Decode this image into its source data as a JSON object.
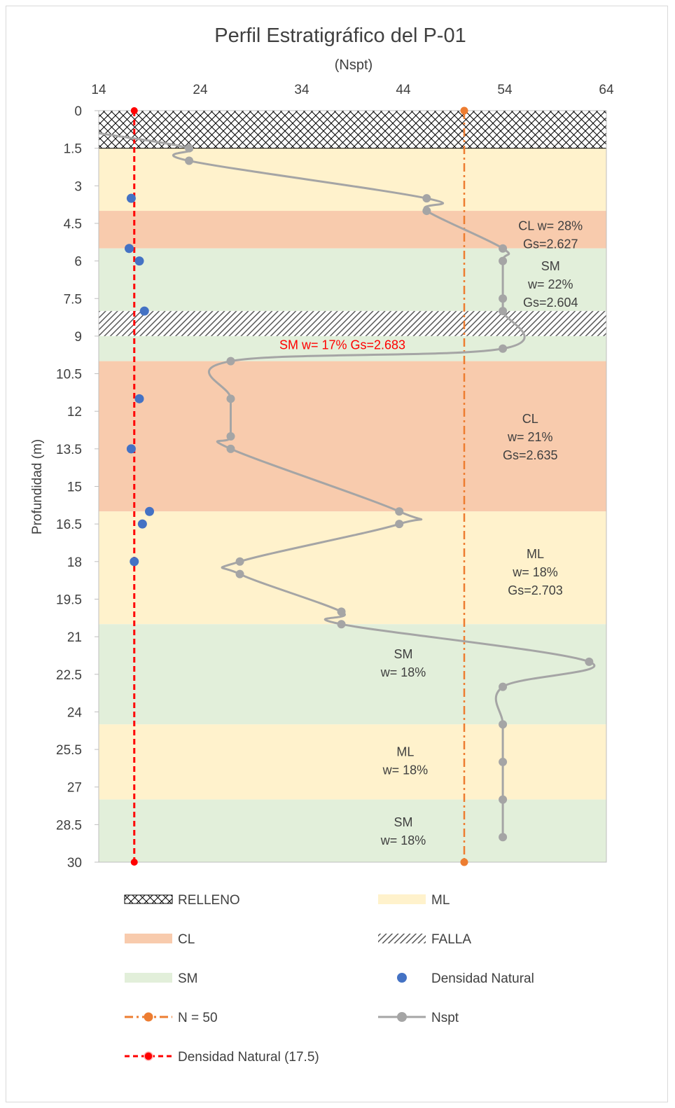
{
  "chart_data": {
    "type": "line",
    "title": "Perfil Estratigráfico del P-01",
    "subtitle": "(Nspt)",
    "ylabel": "Profundidad (m)",
    "xlim": [
      14,
      64
    ],
    "ylim": [
      0,
      30
    ],
    "y_reversed": true,
    "x_ticks": [
      "14",
      "24",
      "34",
      "44",
      "54",
      "64"
    ],
    "y_ticks": [
      "0",
      "1.5",
      "3",
      "4.5",
      "6",
      "7.5",
      "9",
      "10.5",
      "12",
      "13.5",
      "15",
      "16.5",
      "18",
      "19.5",
      "21",
      "22.5",
      "24",
      "25.5",
      "27",
      "28.5",
      "30"
    ],
    "colors": {
      "ML": "#fff2cc",
      "CL": "#f8cbad",
      "SM": "#e2efda",
      "nspt": "#a5a5a5",
      "densidad": "#4472c4",
      "n50": "#ed7d31",
      "densidad_line": "#ff0000",
      "annotation_red": "#ff0000"
    },
    "layers": [
      {
        "type": "RELLENO",
        "from": 0,
        "to": 1.5
      },
      {
        "type": "ML",
        "from": 1.5,
        "to": 4
      },
      {
        "type": "CL",
        "from": 4,
        "to": 5.5
      },
      {
        "type": "SM",
        "from": 5.5,
        "to": 8
      },
      {
        "type": "FALLA",
        "from": 8,
        "to": 9
      },
      {
        "type": "SM",
        "from": 9,
        "to": 10
      },
      {
        "type": "CL",
        "from": 10,
        "to": 16
      },
      {
        "type": "ML",
        "from": 16,
        "to": 20.5
      },
      {
        "type": "SM",
        "from": 20.5,
        "to": 24.5
      },
      {
        "type": "ML",
        "from": 24.5,
        "to": 27.5
      },
      {
        "type": "SM",
        "from": 27.5,
        "to": 30
      }
    ],
    "layer_labels": [
      {
        "lines": [
          "CL   w= 28%",
          "Gs=2.627"
        ],
        "x": 58.5,
        "y": 4.6,
        "color": "dark"
      },
      {
        "lines": [
          "SM",
          "w= 22%",
          "Gs=2.604"
        ],
        "x": 58.5,
        "y": 6.2,
        "color": "dark"
      },
      {
        "lines": [
          "SM       w= 17%        Gs=2.683"
        ],
        "x": 38,
        "y": 9.35,
        "color": "red"
      },
      {
        "lines": [
          "CL",
          "w= 21%",
          "Gs=2.635"
        ],
        "x": 56.5,
        "y": 12.3,
        "color": "dark"
      },
      {
        "lines": [
          "ML",
          "w= 18%",
          "Gs=2.703"
        ],
        "x": 57,
        "y": 17.7,
        "color": "dark"
      },
      {
        "lines": [
          "SM",
          "w= 18%"
        ],
        "x": 44,
        "y": 21.7,
        "color": "dark"
      },
      {
        "lines": [
          "ML",
          "w= 18%"
        ],
        "x": 44.2,
        "y": 25.6,
        "color": "dark"
      },
      {
        "lines": [
          "SM",
          "w= 18%"
        ],
        "x": 44,
        "y": 28.4,
        "color": "dark"
      }
    ],
    "series": [
      {
        "name": "Nspt",
        "type": "line",
        "points": [
          [
            14,
            0.9
          ],
          [
            22.9,
            1.5
          ],
          [
            22.9,
            2
          ],
          [
            46.3,
            3.5
          ],
          [
            46.3,
            4
          ],
          [
            53.8,
            5.5
          ],
          [
            53.8,
            6
          ],
          [
            53.8,
            7.5
          ],
          [
            53.8,
            8
          ],
          [
            53.8,
            9.5
          ],
          [
            27,
            10
          ],
          [
            27,
            11.5
          ],
          [
            27,
            13
          ],
          [
            27,
            13.5
          ],
          [
            43.6,
            16
          ],
          [
            43.6,
            16.5
          ],
          [
            27.9,
            18
          ],
          [
            27.9,
            18.5
          ],
          [
            37.9,
            20
          ],
          [
            37.9,
            20.5
          ],
          [
            62.3,
            22
          ],
          [
            53.8,
            23
          ],
          [
            53.8,
            24.5
          ],
          [
            53.8,
            26
          ],
          [
            53.8,
            27.5
          ],
          [
            53.8,
            29
          ]
        ]
      },
      {
        "name": "Densidad Natural",
        "type": "scatter",
        "points": [
          [
            17.2,
            3.5
          ],
          [
            17.0,
            5.5
          ],
          [
            18.0,
            6
          ],
          [
            18.5,
            8
          ],
          [
            18.0,
            11.5
          ],
          [
            17.2,
            13.5
          ],
          [
            19.0,
            16
          ],
          [
            18.3,
            16.5
          ],
          [
            17.5,
            18
          ]
        ]
      },
      {
        "name": "N = 50",
        "type": "line",
        "points": [
          [
            50,
            0
          ],
          [
            50,
            30
          ]
        ]
      },
      {
        "name": "Densidad Natural (17.5)",
        "type": "line",
        "points": [
          [
            17.5,
            0
          ],
          [
            17.5,
            30
          ]
        ]
      }
    ],
    "legend": [
      {
        "key": "relleno",
        "label": "RELLENO"
      },
      {
        "key": "ml",
        "label": "ML"
      },
      {
        "key": "cl",
        "label": "CL"
      },
      {
        "key": "falla",
        "label": "FALLA"
      },
      {
        "key": "sm",
        "label": "SM"
      },
      {
        "key": "densidad",
        "label": "Densidad Natural"
      },
      {
        "key": "n50",
        "label": "N = 50"
      },
      {
        "key": "nspt",
        "label": "Nspt"
      },
      {
        "key": "densidad_line",
        "label": "Densidad Natural (17.5)"
      }
    ],
    "legend_position": "bottom"
  }
}
